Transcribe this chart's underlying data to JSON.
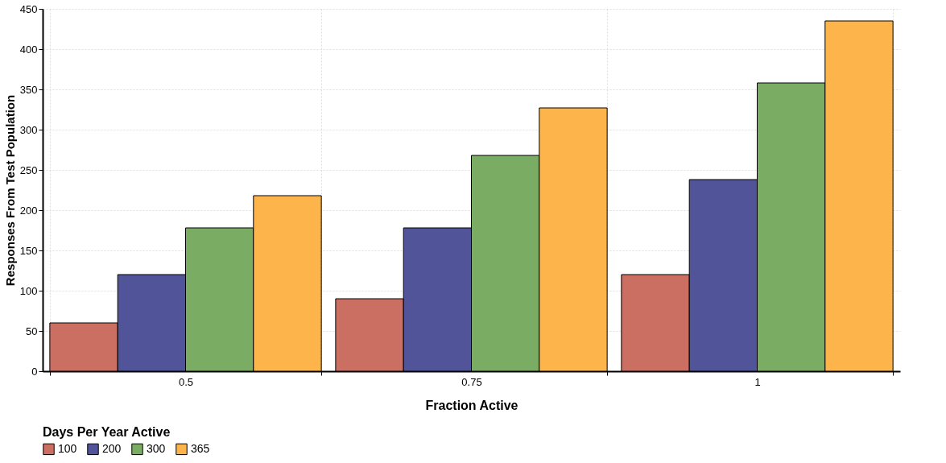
{
  "chart_data": {
    "type": "bar",
    "xlabel": "Fraction Active",
    "ylabel": "Responses From Test Population",
    "legend_title": "Days Per Year Active",
    "categories": [
      "0.5",
      "0.75",
      "1"
    ],
    "series": [
      {
        "name": "100",
        "color": "#cc6f63",
        "values": [
          60,
          90,
          120
        ]
      },
      {
        "name": "200",
        "color": "#515499",
        "values": [
          120,
          178,
          238
        ]
      },
      {
        "name": "300",
        "color": "#7aad63",
        "values": [
          178,
          268,
          358
        ]
      },
      {
        "name": "365",
        "color": "#fdb54b",
        "values": [
          218,
          327,
          435
        ]
      }
    ],
    "ylim": [
      0,
      450
    ],
    "yticks": [
      0,
      50,
      100,
      150,
      200,
      250,
      300,
      350,
      400,
      450
    ],
    "grid": true,
    "legend": "bottom"
  }
}
